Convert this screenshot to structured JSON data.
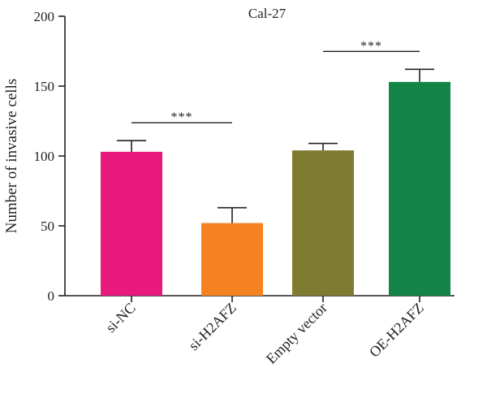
{
  "chart_data": {
    "type": "bar",
    "title": "Cal-27",
    "ylabel": "Number of invasive cells",
    "xlabel": "",
    "ylim": [
      0,
      200
    ],
    "yticks": [
      0,
      50,
      100,
      150,
      200
    ],
    "categories": [
      "si-NC",
      "si-H2AFZ",
      "Empty vector",
      "OE-H2AFZ"
    ],
    "values": [
      103,
      52,
      104,
      153
    ],
    "errors": [
      8,
      11,
      5,
      9
    ],
    "colors": [
      "#e8197c",
      "#f58220",
      "#7d7c31",
      "#138446"
    ],
    "significance": [
      {
        "from": 0,
        "to": 1,
        "label": "***"
      },
      {
        "from": 2,
        "to": 3,
        "label": "***"
      }
    ]
  }
}
